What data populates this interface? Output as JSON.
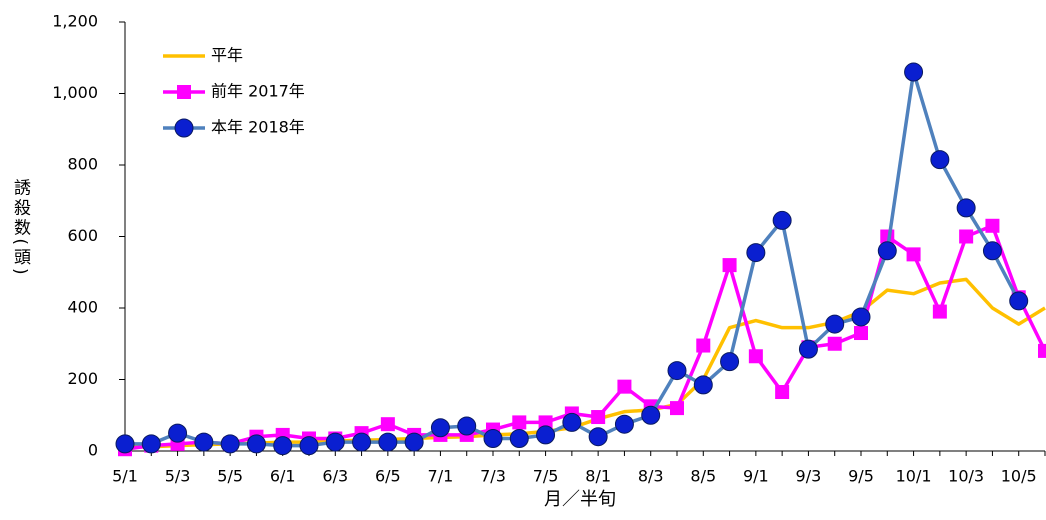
{
  "chart_data": {
    "type": "line",
    "xlabel": "月／半旬",
    "ylabel": "誘殺数(頭)",
    "categories": [
      "5/1",
      null,
      "5/3",
      null,
      "5/5",
      null,
      "6/1",
      null,
      "6/3",
      null,
      "6/5",
      null,
      "7/1",
      null,
      "7/3",
      null,
      "7/5",
      null,
      "8/1",
      null,
      "8/3",
      null,
      "8/5",
      null,
      "9/1",
      null,
      "9/3",
      null,
      "9/5",
      null,
      "10/1",
      null,
      "10/3",
      null,
      "10/5",
      null
    ],
    "series": [
      {
        "name": "平年",
        "color": "#FFC000",
        "marker": null,
        "values": [
          10,
          12,
          15,
          18,
          20,
          22,
          25,
          25,
          28,
          30,
          32,
          35,
          38,
          40,
          45,
          48,
          55,
          65,
          90,
          110,
          115,
          130,
          200,
          345,
          365,
          345,
          345,
          360,
          390,
          450,
          440,
          470,
          480,
          400,
          355,
          400
        ]
      },
      {
        "name": "前年 2017年",
        "color": "#FF00FF",
        "marker": "square",
        "marker_color": "#FF00FF",
        "values": [
          5,
          15,
          20,
          25,
          20,
          40,
          45,
          35,
          35,
          50,
          75,
          45,
          45,
          45,
          60,
          80,
          80,
          105,
          95,
          180,
          125,
          120,
          295,
          520,
          265,
          165,
          290,
          300,
          330,
          600,
          550,
          390,
          600,
          630,
          430,
          280
        ]
      },
      {
        "name": "本年 2018年",
        "color": "#4F81BD",
        "marker": "circle",
        "marker_color": "#0A1FD0",
        "values": [
          20,
          20,
          50,
          25,
          20,
          20,
          15,
          15,
          25,
          25,
          25,
          25,
          65,
          70,
          35,
          35,
          45,
          80,
          40,
          75,
          100,
          225,
          185,
          250,
          555,
          645,
          285,
          355,
          375,
          560,
          1060,
          815,
          680,
          560,
          420,
          null
        ]
      }
    ],
    "ylim": [
      0,
      1200
    ],
    "yticks": [
      0,
      200,
      400,
      600,
      800,
      {
        "value": 1000,
        "label": "1,000"
      },
      {
        "value": 1200,
        "label": "1,200"
      }
    ],
    "grid": false,
    "legend": "upper left"
  }
}
